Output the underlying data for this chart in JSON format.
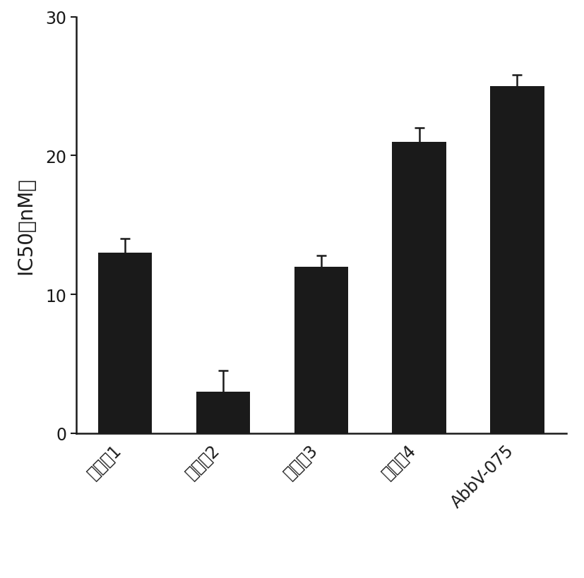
{
  "categories": [
    "化合特1",
    "化合特2",
    "化合特3",
    "化合特4",
    "AbbV-075"
  ],
  "values": [
    13.0,
    3.0,
    12.0,
    21.0,
    25.0
  ],
  "errors": [
    1.0,
    1.5,
    0.8,
    1.0,
    0.8
  ],
  "bar_color": "#1a1a1a",
  "ylabel": "IC50（nM）",
  "ylim": [
    0,
    30
  ],
  "yticks": [
    0,
    10,
    20,
    30
  ],
  "bar_width": 0.55,
  "background_color": "#ffffff",
  "ylabel_fontsize": 20,
  "tick_fontsize": 17,
  "xtick_fontsize": 17,
  "capsize": 5,
  "elinewidth": 1.8,
  "ecapthick": 1.8,
  "ecolor": "#1a1a1a"
}
